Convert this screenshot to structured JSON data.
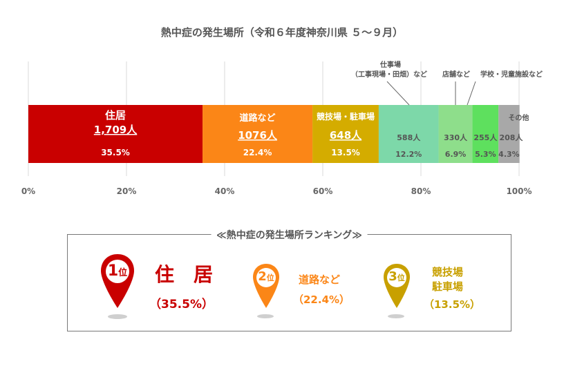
{
  "chart_data": {
    "type": "bar",
    "orientation": "horizontal-stacked-100",
    "title": "熱中症の発生場所（令和６年度神奈川県 ５～９月）",
    "xlim": [
      0,
      100
    ],
    "x_ticks": [
      "0%",
      "20%",
      "40%",
      "60%",
      "80%",
      "100%"
    ],
    "grid": true,
    "series": [
      {
        "label": "住居",
        "count_label": "1,709人",
        "value": 35.5,
        "pct_label": "35.5%",
        "color": "#c90000"
      },
      {
        "label": "道路など",
        "count_label": "1076人",
        "value": 22.4,
        "pct_label": "22.4%",
        "color": "#fb8617"
      },
      {
        "label": "競技場・駐車場",
        "count_label": "648人",
        "value": 13.5,
        "pct_label": "13.5%",
        "color": "#d4ac00"
      },
      {
        "label": "仕事場（工事現場・田畑）など",
        "label_line1": "仕事場",
        "label_line2": "（工事現場・田畑）など",
        "count_label": "588人",
        "value": 12.2,
        "pct_label": "12.2%",
        "color": "#7dd8a9"
      },
      {
        "label": "店舗など",
        "count_label": "330人",
        "value": 6.9,
        "pct_label": "6.9%",
        "color": "#8ede8b"
      },
      {
        "label": "学校・児童施設など",
        "count_label": "255人",
        "value": 5.3,
        "pct_label": "5.3%",
        "color": "#5ee05e"
      },
      {
        "label": "その他",
        "count_label": "208人",
        "value": 4.3,
        "pct_label": "4.3%",
        "color": "#a8a8a8"
      }
    ]
  },
  "ranking": {
    "title": "≪熱中症の発生場所ランキング≫",
    "items": [
      {
        "rank": "1",
        "suffix": "位",
        "name_lines": [
          "住　居"
        ],
        "pct": "（35.5%）",
        "color": "#c90000"
      },
      {
        "rank": "2",
        "suffix": "位",
        "name_lines": [
          "道路など"
        ],
        "pct": "（22.4%）",
        "color": "#fb8617"
      },
      {
        "rank": "3",
        "suffix": "位",
        "name_lines": [
          "競技場",
          "駐車場"
        ],
        "pct": "（13.5%）",
        "color": "#c8a000"
      }
    ]
  }
}
